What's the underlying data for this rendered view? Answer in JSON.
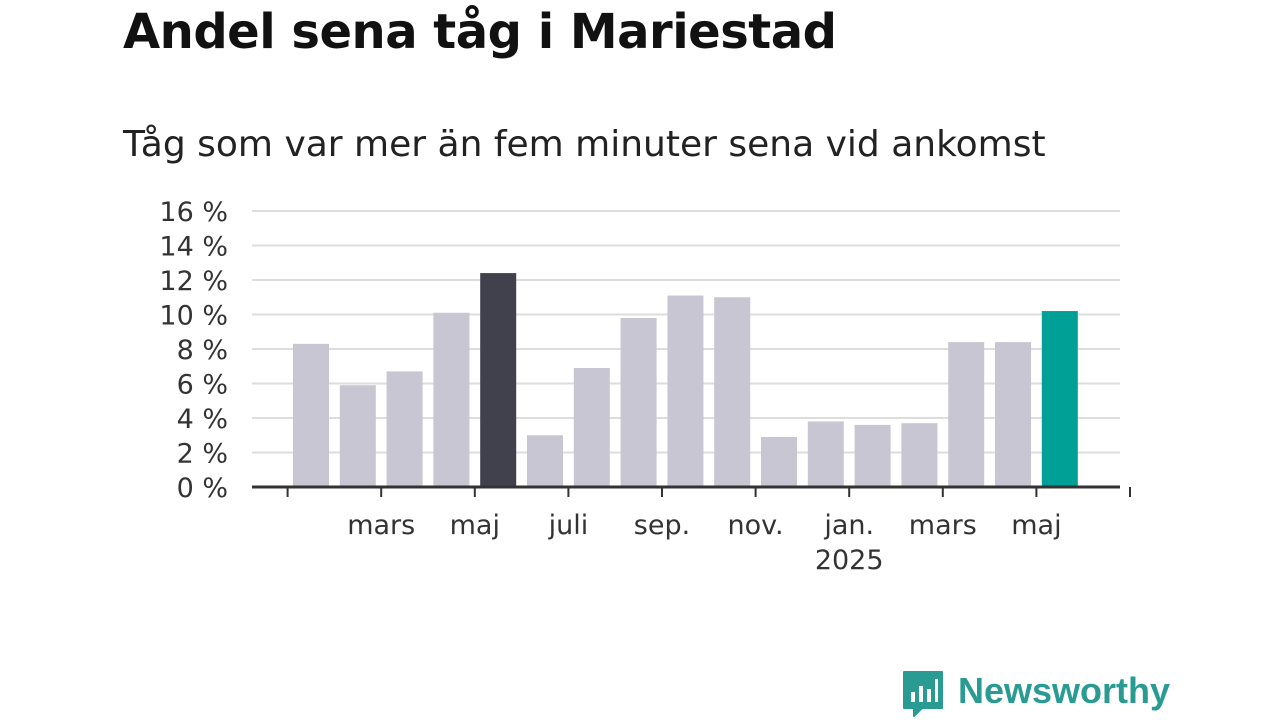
{
  "title": "Andel sena tåg i Mariestad",
  "subtitle": "Tåg som var mer än fem minuter sena vid ankomst",
  "brand": {
    "name": "Newsworthy",
    "icon": "bar-chart-speech-bubble-icon",
    "color": "#2a9b93"
  },
  "colors": {
    "default_bar": "#c8c6d2",
    "highlight_bar": "#41404d",
    "latest_bar": "#00a096",
    "grid": "#dddddd",
    "axis": "#333333"
  },
  "chart_data": {
    "type": "bar",
    "categories": [
      "2024-02",
      "2024-03",
      "2024-04",
      "2024-05",
      "2024-06",
      "2024-07",
      "2024-08",
      "2024-09",
      "2024-10",
      "2024-11",
      "2024-12",
      "2025-01",
      "2025-02",
      "2025-03",
      "2025-04",
      "2025-05",
      "2025-06"
    ],
    "values": [
      8.3,
      5.9,
      6.7,
      10.1,
      12.4,
      3.0,
      6.9,
      9.8,
      11.1,
      11.0,
      2.9,
      3.8,
      3.6,
      3.7,
      8.4,
      8.4,
      10.2
    ],
    "highlight_index": 4,
    "latest_index": 16,
    "ylim": [
      0,
      16
    ],
    "yticks": [
      {
        "value": 0,
        "label": "0 %"
      },
      {
        "value": 2,
        "label": "2 %"
      },
      {
        "value": 4,
        "label": "4 %"
      },
      {
        "value": 6,
        "label": "6 %"
      },
      {
        "value": 8,
        "label": "8 %"
      },
      {
        "value": 10,
        "label": "10 %"
      },
      {
        "value": 12,
        "label": "12 %"
      },
      {
        "value": 14,
        "label": "14 %"
      },
      {
        "value": 16,
        "label": "16 %"
      }
    ],
    "xticks": [
      {
        "index": 1,
        "label": "mars"
      },
      {
        "index": 3,
        "label": "maj"
      },
      {
        "index": 5,
        "label": "juli"
      },
      {
        "index": 7,
        "label": "sep."
      },
      {
        "index": 9,
        "label": "nov."
      },
      {
        "index": 11,
        "label": "jan.",
        "sublabel": "2025"
      },
      {
        "index": 13,
        "label": "mars"
      },
      {
        "index": 15,
        "label": "maj"
      }
    ],
    "grid": true,
    "xlabel": "",
    "ylabel": ""
  }
}
